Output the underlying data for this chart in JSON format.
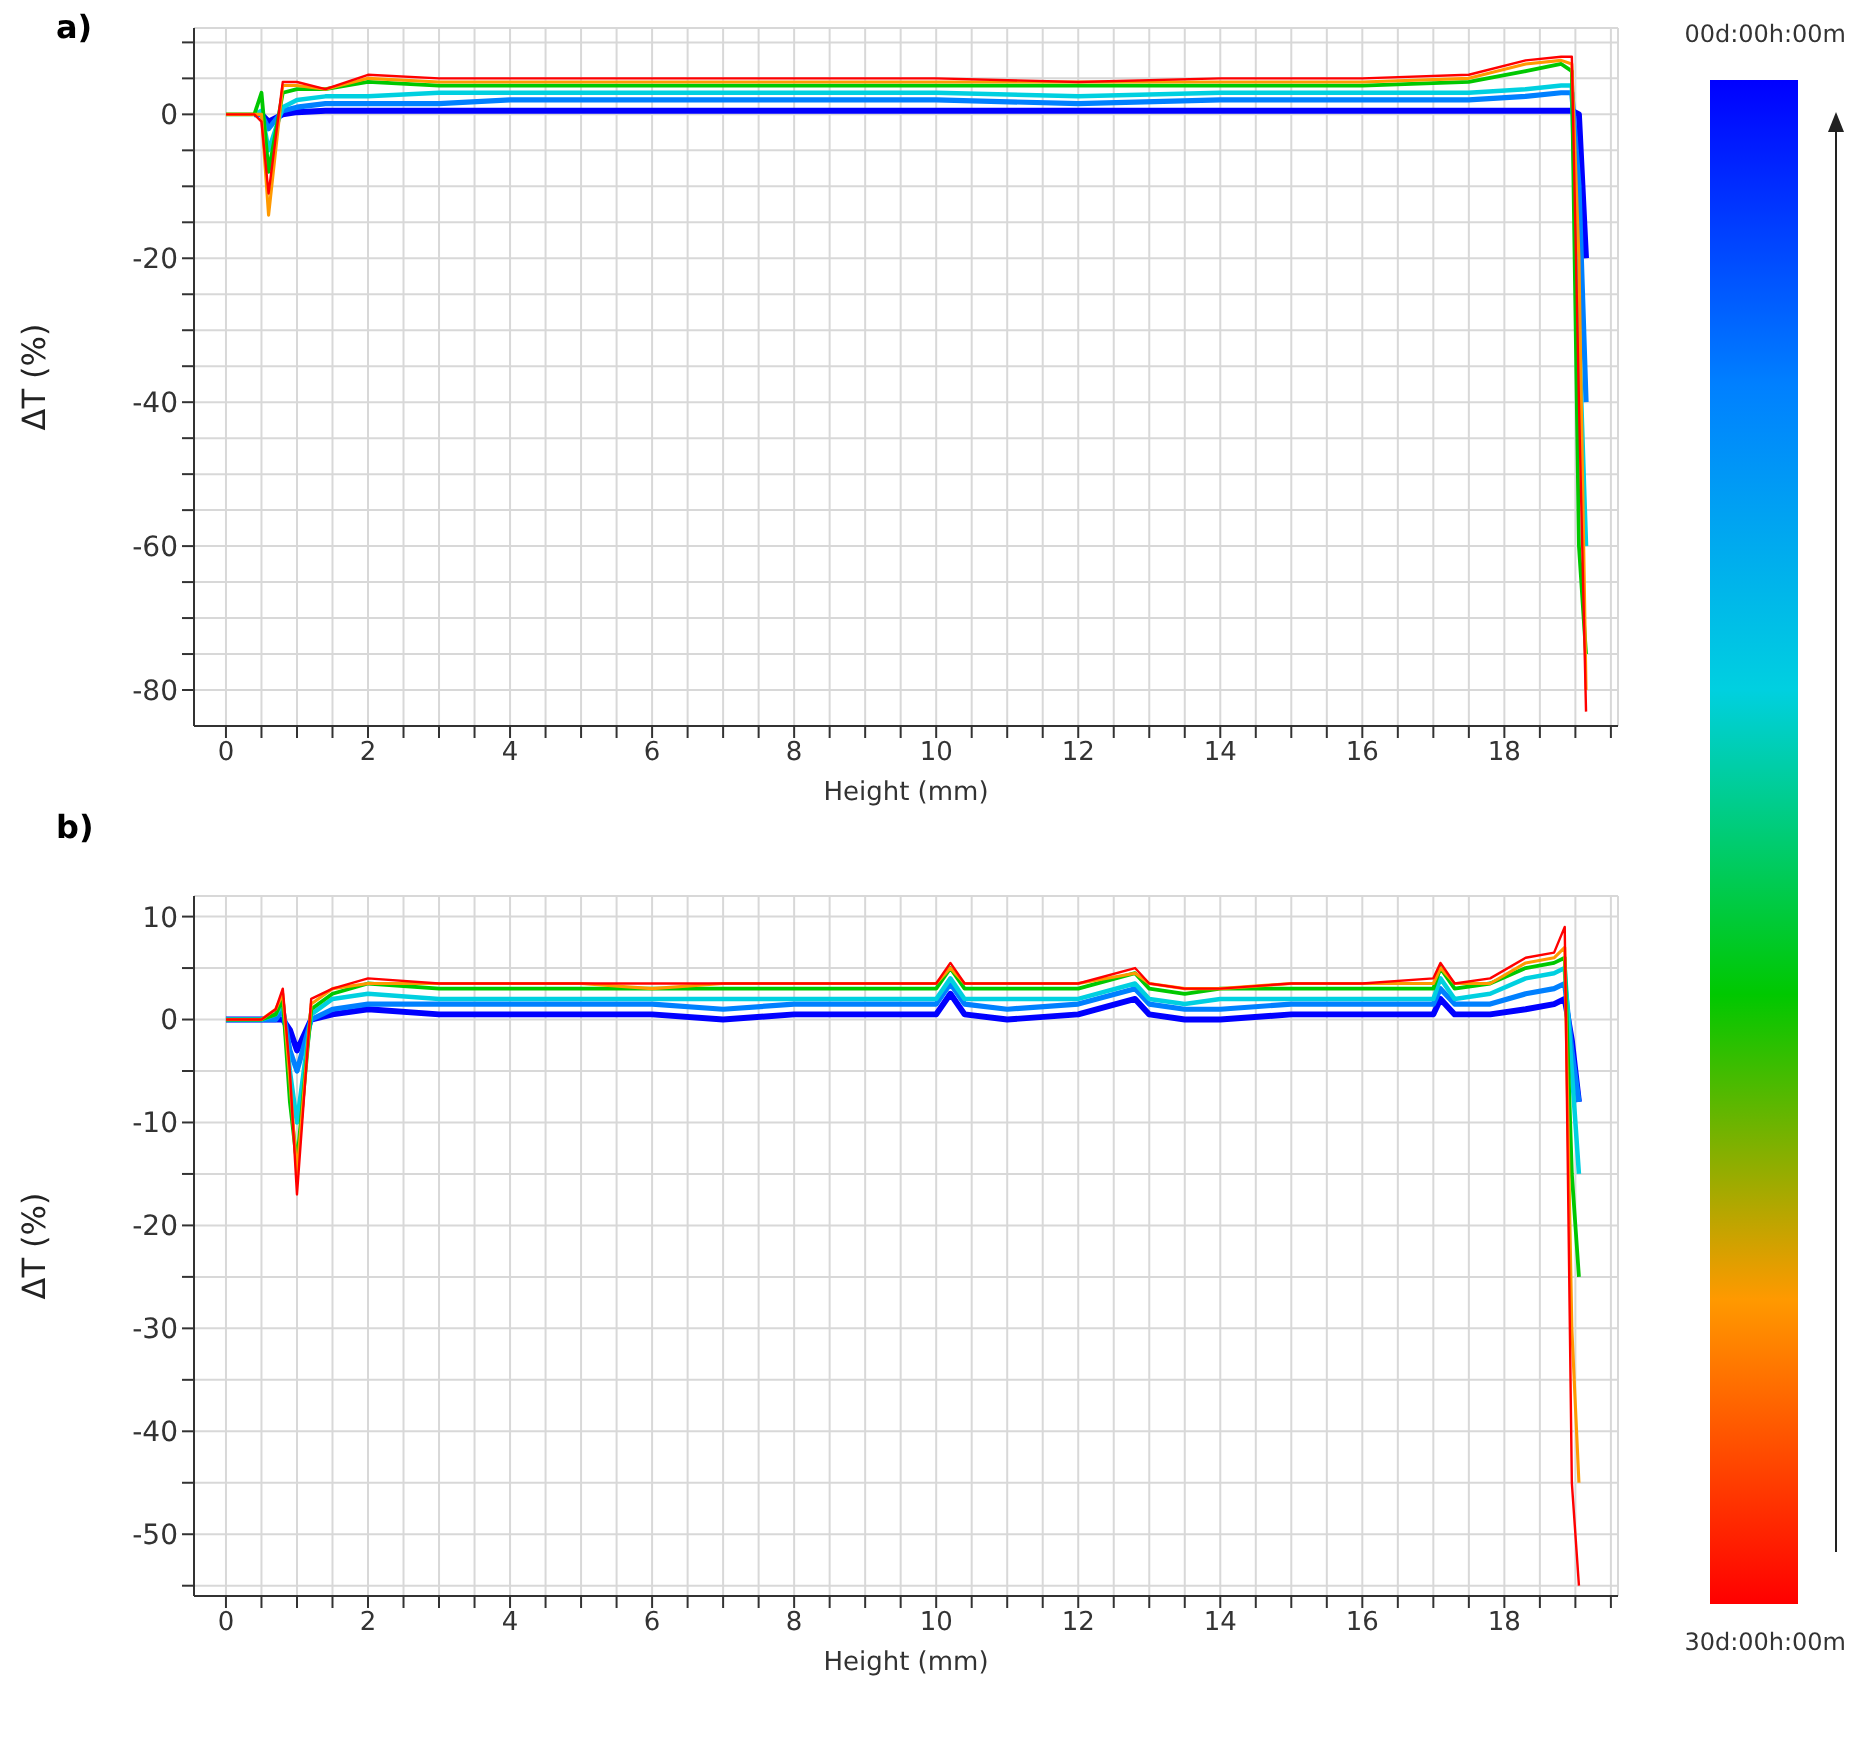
{
  "chart_data": [
    {
      "type": "line",
      "title": "a)",
      "xlabel": "Height (mm)",
      "ylabel": "ΔT (%)",
      "xlim": [
        -0.45,
        19.6
      ],
      "ylim": [
        -85,
        12
      ],
      "xticks": [
        0,
        {
          "value": 0.5,
          "label": null
        },
        {
          "value": 1,
          "label": null
        },
        {
          "value": 1.5,
          "label": null
        },
        2,
        {
          "value": 2.5,
          "label": null
        },
        {
          "value": 3,
          "label": null
        },
        {
          "value": 3.5,
          "label": null
        },
        4,
        {
          "value": 4.5,
          "label": null
        },
        {
          "value": 5,
          "label": null
        },
        {
          "value": 5.5,
          "label": null
        },
        6,
        {
          "value": 6.5,
          "label": null
        },
        {
          "value": 7,
          "label": null
        },
        {
          "value": 7.5,
          "label": null
        },
        8,
        {
          "value": 8.5,
          "label": null
        },
        {
          "value": 9,
          "label": null
        },
        {
          "value": 9.5,
          "label": null
        },
        10,
        {
          "value": 10.5,
          "label": null
        },
        {
          "value": 11,
          "label": null
        },
        {
          "value": 11.5,
          "label": null
        },
        12,
        {
          "value": 12.5,
          "label": null
        },
        {
          "value": 13,
          "label": null
        },
        {
          "value": 13.5,
          "label": null
        },
        14,
        {
          "value": 14.5,
          "label": null
        },
        {
          "value": 15,
          "label": null
        },
        {
          "value": 15.5,
          "label": null
        },
        16,
        {
          "value": 16.5,
          "label": null
        },
        {
          "value": 17,
          "label": null
        },
        {
          "value": 17.5,
          "label": null
        },
        18,
        {
          "value": 18.5,
          "label": null
        },
        {
          "value": 19,
          "label": null
        },
        {
          "value": 19.5,
          "label": null
        }
      ],
      "yticks": [
        {
          "value": 10,
          "label": null
        },
        {
          "value": 5,
          "label": null
        },
        0,
        {
          "value": -5,
          "label": null
        },
        {
          "value": -10,
          "label": null
        },
        {
          "value": -15,
          "label": null
        },
        -20,
        {
          "value": -25,
          "label": null
        },
        {
          "value": -30,
          "label": null
        },
        {
          "value": -35,
          "label": null
        },
        -40,
        {
          "value": -45,
          "label": null
        },
        {
          "value": -50,
          "label": null
        },
        {
          "value": -55,
          "label": null
        },
        -60,
        {
          "value": -65,
          "label": null
        },
        {
          "value": -70,
          "label": null
        },
        {
          "value": -75,
          "label": null
        },
        -80
      ],
      "grid": true,
      "x": [
        0,
        0.3,
        0.4,
        0.5,
        0.6,
        0.8,
        1.0,
        1.4,
        2,
        3,
        4,
        6,
        8,
        10,
        12,
        14,
        16,
        17.5,
        18.3,
        18.8,
        18.95,
        19.05,
        19.15
      ],
      "series": [
        {
          "color": "#0000ff",
          "values": [
            null,
            null,
            0,
            0,
            -1,
            0,
            0.3,
            0.5,
            0.5,
            0.5,
            0.5,
            0.5,
            0.5,
            0.5,
            0.5,
            0.5,
            0.5,
            0.5,
            0.5,
            0.5,
            0.5,
            0,
            -20
          ]
        },
        {
          "color": "#0080ff",
          "values": [
            null,
            null,
            0,
            0,
            -2,
            0.5,
            1,
            1.5,
            1.5,
            1.5,
            2,
            2,
            2,
            2,
            1.5,
            2,
            2,
            2,
            2.5,
            3,
            3,
            -10,
            -40
          ]
        },
        {
          "color": "#00d0e0",
          "values": [
            null,
            null,
            0,
            0.5,
            -5,
            1,
            2,
            2.5,
            2.5,
            3,
            3,
            3,
            3,
            3,
            2.5,
            3,
            3,
            3,
            3.5,
            4,
            4,
            -30,
            -60
          ]
        },
        {
          "color": "#00c800",
          "values": [
            0,
            0,
            0,
            3,
            -8,
            3,
            3.5,
            3.5,
            4.5,
            4,
            4,
            4,
            4,
            4,
            4,
            4,
            4,
            4.5,
            6,
            7,
            6,
            -60,
            -75
          ]
        },
        {
          "color": "#ff9900",
          "values": [
            0,
            0,
            0,
            0,
            -14,
            4,
            4,
            3.5,
            5,
            4.5,
            4.5,
            4.5,
            4.5,
            4.5,
            4.5,
            4.5,
            4.5,
            5,
            7,
            7.5,
            7,
            -20,
            -80
          ]
        },
        {
          "color": "#ff0000",
          "values": [
            0,
            0,
            0,
            -1,
            -11,
            4.5,
            4.5,
            3.5,
            5.5,
            5,
            5,
            5,
            5,
            5,
            4.5,
            5,
            5,
            5.5,
            7.5,
            8,
            8,
            -40,
            -83
          ]
        }
      ]
    },
    {
      "type": "line",
      "title": "b)",
      "xlabel": "Height (mm)",
      "ylabel": "ΔT (%)",
      "xlim": [
        -0.45,
        19.6
      ],
      "ylim": [
        -56,
        12
      ],
      "xticks": [
        0,
        {
          "value": 0.5,
          "label": null
        },
        {
          "value": 1,
          "label": null
        },
        {
          "value": 1.5,
          "label": null
        },
        2,
        {
          "value": 2.5,
          "label": null
        },
        {
          "value": 3,
          "label": null
        },
        {
          "value": 3.5,
          "label": null
        },
        4,
        {
          "value": 4.5,
          "label": null
        },
        {
          "value": 5,
          "label": null
        },
        {
          "value": 5.5,
          "label": null
        },
        6,
        {
          "value": 6.5,
          "label": null
        },
        {
          "value": 7,
          "label": null
        },
        {
          "value": 7.5,
          "label": null
        },
        8,
        {
          "value": 8.5,
          "label": null
        },
        {
          "value": 9,
          "label": null
        },
        {
          "value": 9.5,
          "label": null
        },
        10,
        {
          "value": 10.5,
          "label": null
        },
        {
          "value": 11,
          "label": null
        },
        {
          "value": 11.5,
          "label": null
        },
        12,
        {
          "value": 12.5,
          "label": null
        },
        {
          "value": 13,
          "label": null
        },
        {
          "value": 13.5,
          "label": null
        },
        14,
        {
          "value": 14.5,
          "label": null
        },
        {
          "value": 15,
          "label": null
        },
        {
          "value": 15.5,
          "label": null
        },
        16,
        {
          "value": 16.5,
          "label": null
        },
        {
          "value": 17,
          "label": null
        },
        {
          "value": 17.5,
          "label": null
        },
        18,
        {
          "value": 18.5,
          "label": null
        },
        {
          "value": 19,
          "label": null
        },
        {
          "value": 19.5,
          "label": null
        }
      ],
      "yticks": [
        10,
        {
          "value": 5,
          "label": null
        },
        0,
        {
          "value": -5,
          "label": null
        },
        -10,
        {
          "value": -15,
          "label": null
        },
        -20,
        {
          "value": -25,
          "label": null
        },
        -30,
        {
          "value": -35,
          "label": null
        },
        -40,
        {
          "value": -45,
          "label": null
        },
        -50,
        {
          "value": -55,
          "label": null
        }
      ],
      "grid": true,
      "x": [
        0,
        0.5,
        0.7,
        0.8,
        0.9,
        1.0,
        1.2,
        1.5,
        2,
        3,
        4,
        5,
        6,
        7,
        8,
        9,
        10,
        10.2,
        10.4,
        11,
        12,
        12.8,
        13,
        13.5,
        14,
        15,
        16,
        17,
        17.1,
        17.3,
        17.8,
        18.3,
        18.7,
        18.85,
        18.95,
        19.05
      ],
      "series": [
        {
          "color": "#0000ff",
          "values": [
            0,
            0,
            0,
            0,
            -1,
            -3,
            0,
            0.5,
            1,
            0.5,
            0.5,
            0.5,
            0.5,
            0,
            0.5,
            0.5,
            0.5,
            2.5,
            0.5,
            0,
            0.5,
            2,
            0.5,
            0,
            0,
            0.5,
            0.5,
            0.5,
            2,
            0.5,
            0.5,
            1,
            1.5,
            2,
            -2,
            -8
          ]
        },
        {
          "color": "#0080ff",
          "values": [
            0,
            0,
            0,
            1,
            -3,
            -5,
            0,
            1,
            1.5,
            1.5,
            1.5,
            1.5,
            1.5,
            1,
            1.5,
            1.5,
            1.5,
            3.5,
            1.5,
            1,
            1.5,
            3,
            1.5,
            1,
            1,
            1.5,
            1.5,
            1.5,
            3,
            1.5,
            1.5,
            2.5,
            3,
            3.5,
            -3,
            -8
          ]
        },
        {
          "color": "#00d0e0",
          "values": [
            0,
            0,
            0.5,
            1.5,
            -5,
            -10,
            0.5,
            2,
            2.5,
            2,
            2,
            2,
            2,
            2,
            2,
            2,
            2,
            4,
            2,
            2,
            2,
            3.5,
            2,
            1.5,
            2,
            2,
            2,
            2,
            4,
            2,
            2.5,
            4,
            4.5,
            5,
            -5,
            -15
          ]
        },
        {
          "color": "#00c800",
          "values": [
            0,
            0,
            0.5,
            2,
            -8,
            -14,
            1,
            2.5,
            3.5,
            3,
            3,
            3,
            3,
            3,
            3,
            3,
            3,
            5,
            3,
            3,
            3,
            4.5,
            3,
            2.5,
            3,
            3,
            3,
            3,
            5,
            3,
            3.5,
            5,
            5.5,
            6,
            -15,
            -25
          ]
        },
        {
          "color": "#ff9900",
          "values": [
            0,
            0,
            1,
            2.5,
            -6,
            -15,
            1.5,
            3,
            3.5,
            3.5,
            3.5,
            3.5,
            3,
            3.5,
            3.5,
            3.5,
            3.5,
            5,
            3.5,
            3.5,
            3.5,
            4.5,
            3.5,
            3,
            3,
            3.5,
            3.5,
            3.5,
            5,
            3.5,
            3.5,
            5.5,
            6,
            7,
            -30,
            -45
          ]
        },
        {
          "color": "#ff0000",
          "values": [
            0,
            0,
            1,
            3,
            -5,
            -17,
            2,
            3,
            4,
            3.5,
            3.5,
            3.5,
            3.5,
            3.5,
            3.5,
            3.5,
            3.5,
            5.5,
            3.5,
            3.5,
            3.5,
            5,
            3.5,
            3,
            3,
            3.5,
            3.5,
            4,
            5.5,
            3.5,
            4,
            6,
            6.5,
            9,
            -45,
            -55
          ]
        }
      ]
    },
    {
      "type": "other",
      "annotations": [
        "00d:00h:00m",
        "30d:00h:00m"
      ]
    }
  ]
}
